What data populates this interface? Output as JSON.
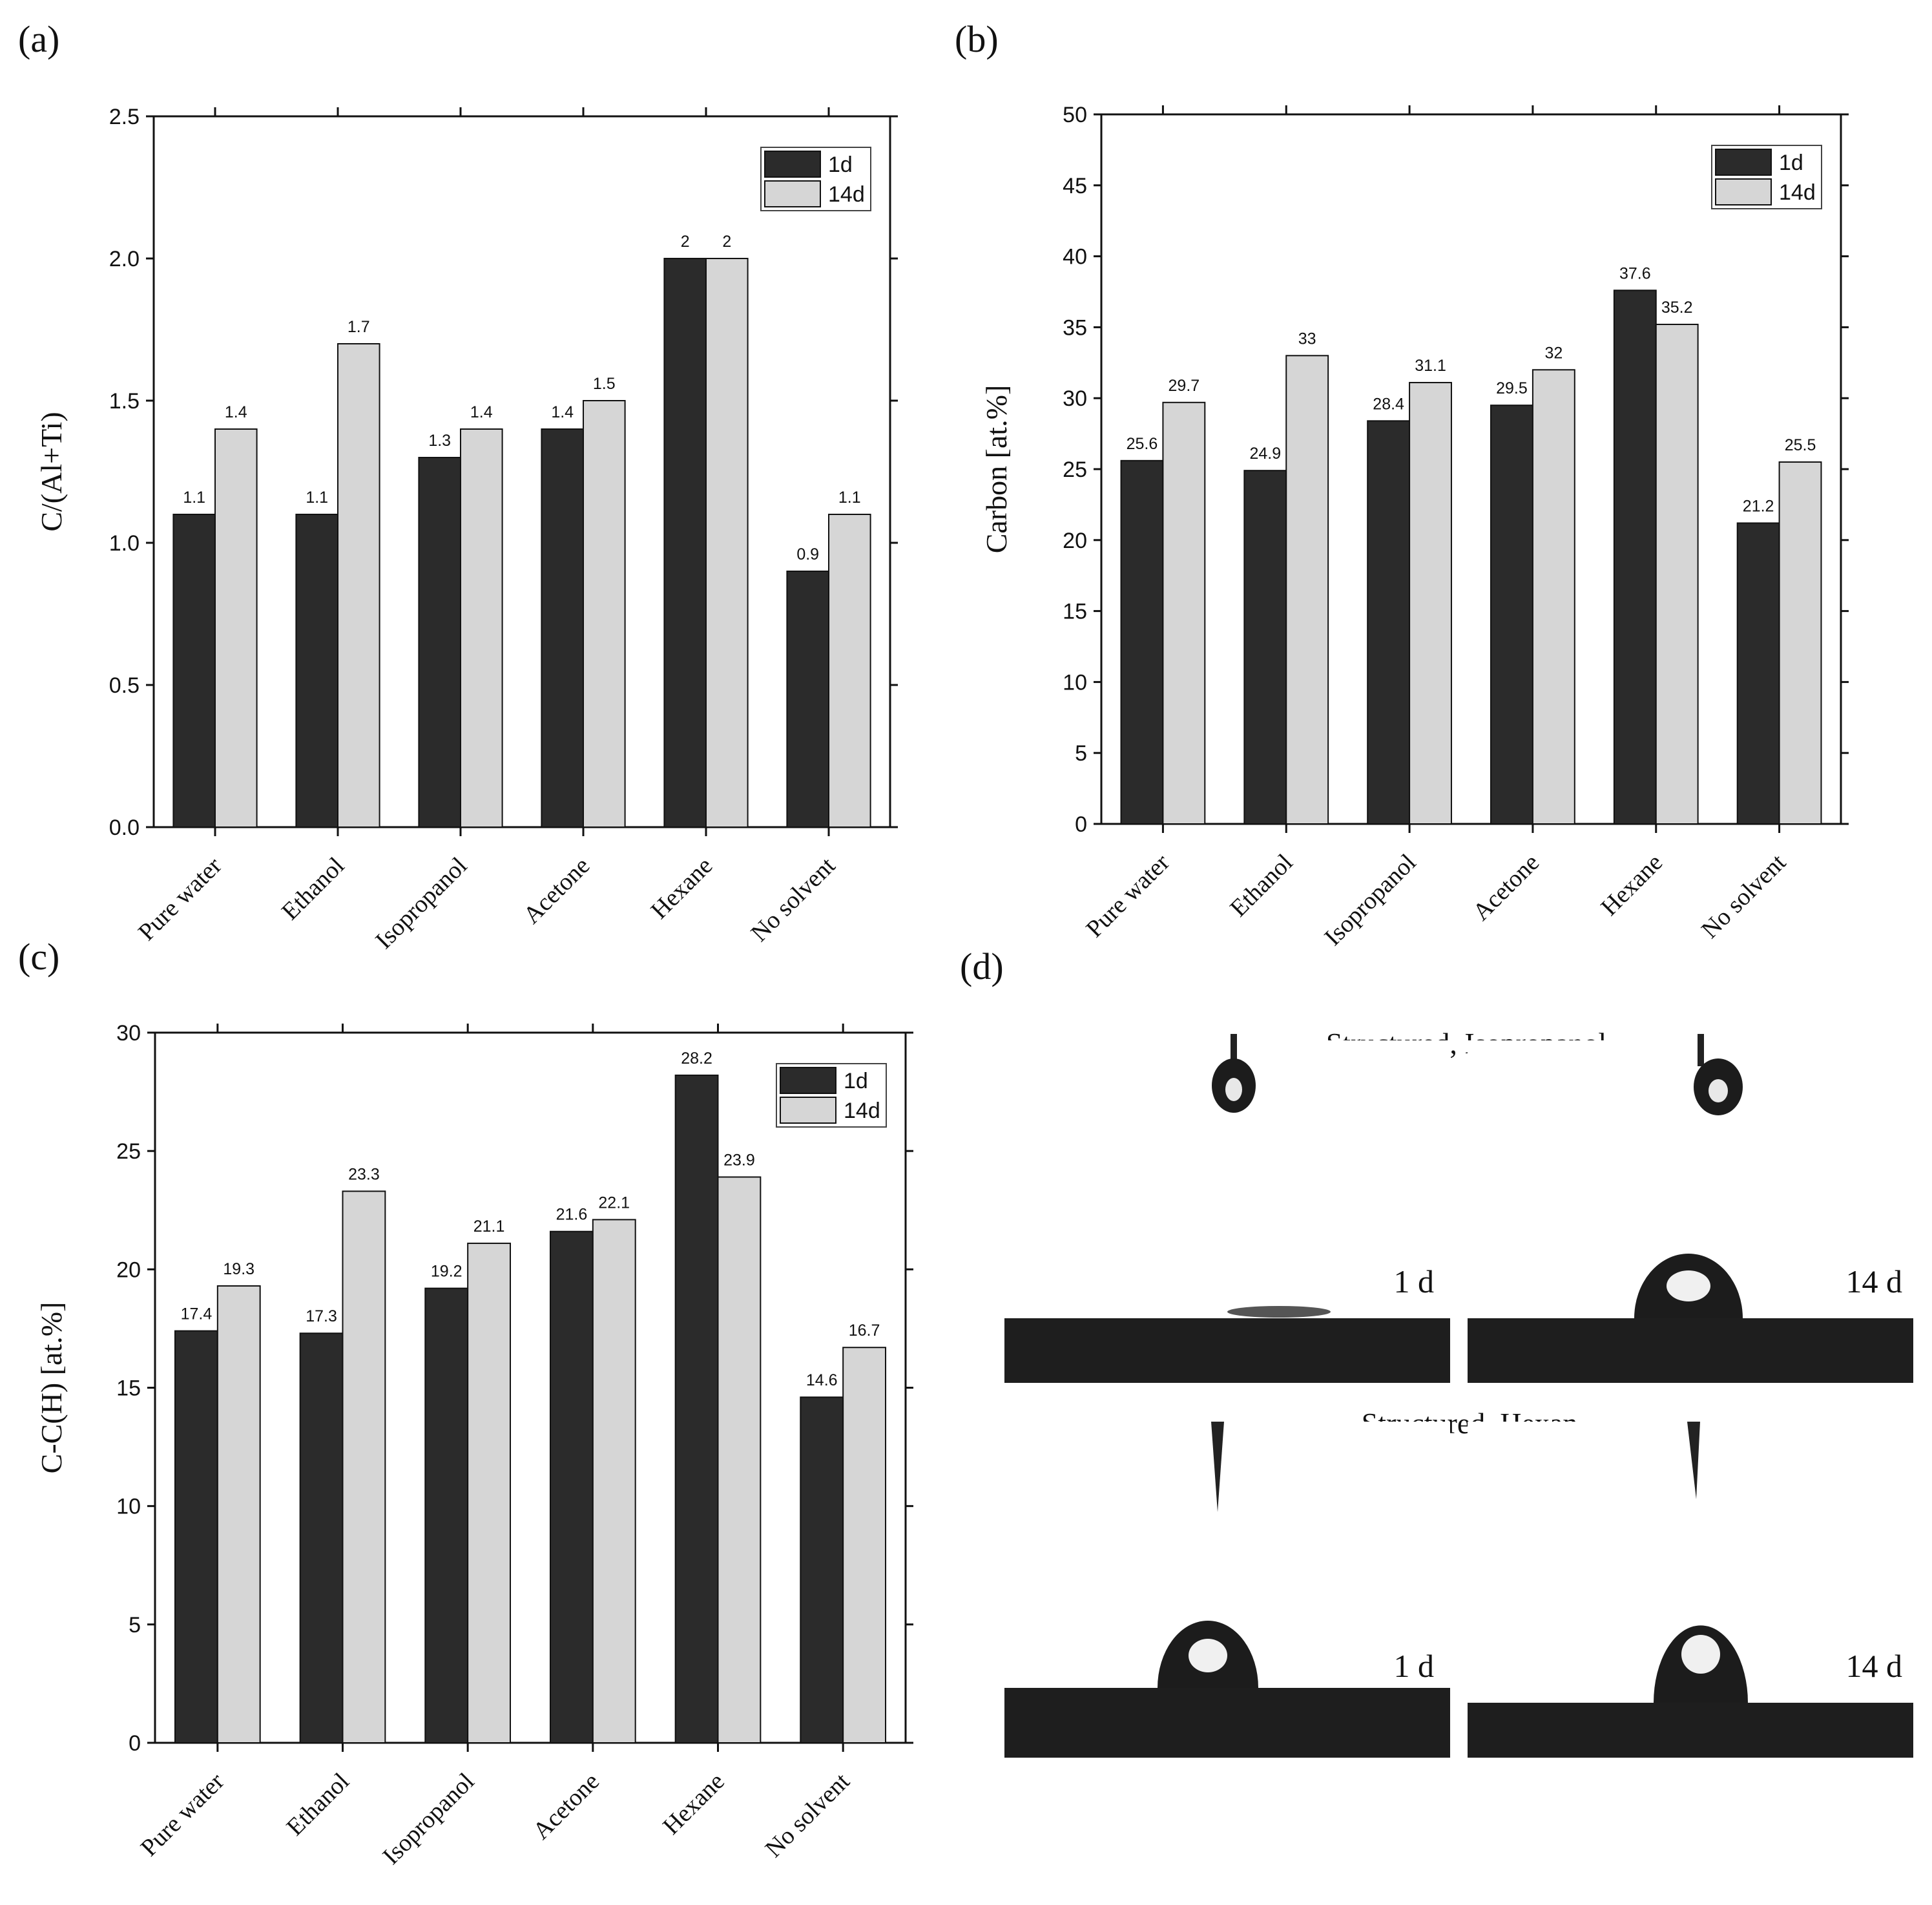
{
  "colors": {
    "d1": "#2b2b2b",
    "d14": "#d6d6d6",
    "axis": "#111111"
  },
  "panels": {
    "a": {
      "label": "(a)"
    },
    "b": {
      "label": "(b)"
    },
    "c": {
      "label": "(c)"
    },
    "d": {
      "label": "(d)"
    }
  },
  "chart_data": [
    {
      "id": "a",
      "type": "bar",
      "categories": [
        "Pure water",
        "Ethanol",
        "Isopropanol",
        "Acetone",
        "Hexane",
        "No solvent"
      ],
      "series": [
        {
          "name": "1d",
          "values": [
            1.1,
            1.1,
            1.3,
            1.4,
            2,
            0.9
          ],
          "labels": [
            "1.1",
            "1.1",
            "1.3",
            "1.4",
            "2",
            "0.9"
          ]
        },
        {
          "name": "14d",
          "values": [
            1.4,
            1.7,
            1.4,
            1.5,
            2,
            1.1
          ],
          "labels": [
            "1.4",
            "1.7",
            "1.4",
            "1.5",
            "2",
            "1.1"
          ]
        }
      ],
      "ylabel": "C/(Al+Ti)",
      "ylim": [
        0,
        2.5
      ],
      "yticks": [
        "0.0",
        "0.5",
        "1.0",
        "1.5",
        "2.0",
        "2.5"
      ],
      "legend": "top-right"
    },
    {
      "id": "b",
      "type": "bar",
      "categories": [
        "Pure water",
        "Ethanol",
        "Isopropanol",
        "Acetone",
        "Hexane",
        "No solvent"
      ],
      "series": [
        {
          "name": "1d",
          "values": [
            25.6,
            24.9,
            28.4,
            29.5,
            37.6,
            21.2
          ],
          "labels": [
            "25.6",
            "24.9",
            "28.4",
            "29.5",
            "37.6",
            "21.2"
          ]
        },
        {
          "name": "14d",
          "values": [
            29.7,
            33,
            31.1,
            32,
            35.2,
            25.5
          ],
          "labels": [
            "29.7",
            "33",
            "31.1",
            "32",
            "35.2",
            "25.5"
          ]
        }
      ],
      "ylabel": "Carbon [at.%]",
      "ylim": [
        0,
        50
      ],
      "yticks": [
        "0",
        "5",
        "10",
        "15",
        "20",
        "25",
        "30",
        "35",
        "40",
        "45",
        "50"
      ],
      "legend": "top-right"
    },
    {
      "id": "c",
      "type": "bar",
      "categories": [
        "Pure water",
        "Ethanol",
        "Isopropanol",
        "Acetone",
        "Hexane",
        "No solvent"
      ],
      "series": [
        {
          "name": "1d",
          "values": [
            17.4,
            17.3,
            19.2,
            21.6,
            28.2,
            14.6
          ],
          "labels": [
            "17.4",
            "17.3",
            "19.2",
            "21.6",
            "28.2",
            "14.6"
          ]
        },
        {
          "name": "14d",
          "values": [
            19.3,
            23.3,
            21.1,
            22.1,
            23.9,
            16.7
          ],
          "labels": [
            "19.3",
            "23.3",
            "21.1",
            "22.1",
            "23.9",
            "16.7"
          ]
        }
      ],
      "ylabel": "C-C(H) [at.%]",
      "ylim": [
        0,
        30
      ],
      "yticks": [
        "0",
        "5",
        "10",
        "15",
        "20",
        "25",
        "30"
      ],
      "legend": "top-right"
    }
  ],
  "photos": {
    "top_title": "Structured, Isopropanol",
    "bottom_title": "Structured, Hexan",
    "label_1d": "1 d",
    "label_14d": "14 d"
  }
}
